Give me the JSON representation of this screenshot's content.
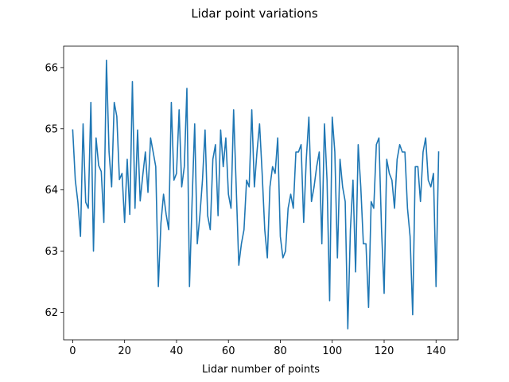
{
  "chart_data": {
    "type": "line",
    "title": "Lidar point variations",
    "xlabel": "Lidar number of points",
    "ylabel": "",
    "xlim": [
      -3.5,
      148.5
    ],
    "ylim": [
      61.55,
      66.35
    ],
    "xticks": [
      0,
      20,
      40,
      60,
      80,
      100,
      120,
      140
    ],
    "yticks": [
      62,
      63,
      64,
      65,
      66
    ],
    "grid": false,
    "series": [
      {
        "color": "#1f77b4",
        "x": [
          0,
          1,
          2,
          3,
          4,
          5,
          6,
          7,
          8,
          9,
          10,
          11,
          12,
          13,
          14,
          15,
          16,
          17,
          18,
          19,
          20,
          21,
          22,
          23,
          24,
          25,
          26,
          27,
          28,
          29,
          30,
          31,
          32,
          33,
          34,
          35,
          36,
          37,
          38,
          39,
          40,
          41,
          42,
          43,
          44,
          45,
          46,
          47,
          48,
          49,
          50,
          51,
          52,
          53,
          54,
          55,
          56,
          57,
          58,
          59,
          60,
          61,
          62,
          63,
          64,
          65,
          66,
          67,
          68,
          69,
          70,
          71,
          72,
          73,
          74,
          75,
          76,
          77,
          78,
          79,
          80,
          81,
          82,
          83,
          84,
          85,
          86,
          87,
          88,
          89,
          90,
          91,
          92,
          93,
          94,
          95,
          96,
          97,
          98,
          99,
          100,
          101,
          102,
          103,
          104,
          105,
          106,
          107,
          108,
          109,
          110,
          111,
          112,
          113,
          114,
          115,
          116,
          117,
          118,
          119,
          120,
          121,
          122,
          123,
          124,
          125,
          126,
          127,
          128,
          129,
          130,
          131,
          132,
          133,
          134,
          135,
          136,
          137,
          138,
          139,
          140,
          141
        ],
        "y": [
          64.98,
          64.16,
          63.8,
          63.24,
          65.08,
          63.8,
          63.7,
          65.43,
          63.0,
          64.85,
          64.4,
          64.3,
          63.47,
          66.12,
          64.62,
          64.05,
          65.43,
          65.2,
          64.17,
          64.27,
          63.47,
          64.5,
          63.6,
          65.77,
          63.7,
          64.98,
          63.82,
          64.24,
          64.62,
          63.96,
          64.85,
          64.62,
          64.38,
          62.42,
          63.46,
          63.93,
          63.6,
          63.35,
          65.43,
          64.16,
          64.27,
          65.31,
          64.05,
          64.38,
          65.66,
          62.42,
          63.81,
          65.08,
          63.12,
          63.58,
          64.16,
          64.98,
          63.58,
          63.35,
          64.5,
          64.74,
          63.58,
          64.98,
          64.38,
          64.85,
          63.93,
          63.7,
          65.31,
          64.05,
          62.77,
          63.12,
          63.35,
          64.16,
          64.05,
          65.31,
          64.05,
          64.62,
          65.08,
          64.27,
          63.35,
          62.89,
          64.05,
          64.38,
          64.27,
          64.85,
          63.24,
          62.89,
          63.0,
          63.7,
          63.93,
          63.7,
          64.62,
          64.62,
          64.74,
          63.47,
          64.5,
          65.19,
          63.81,
          64.05,
          64.38,
          64.62,
          63.12,
          65.08,
          64.16,
          62.19,
          65.19,
          64.62,
          62.89,
          64.5,
          64.05,
          63.81,
          61.73,
          63.35,
          64.16,
          62.66,
          64.74,
          64.05,
          63.12,
          63.12,
          62.08,
          63.81,
          63.7,
          64.74,
          64.85,
          63.35,
          62.31,
          64.5,
          64.27,
          64.16,
          63.7,
          64.5,
          64.74,
          64.62,
          64.62,
          63.7,
          63.24,
          61.96,
          64.38,
          64.38,
          63.81,
          64.62,
          64.85,
          64.16,
          64.05,
          64.27,
          62.42,
          64.62
        ]
      }
    ]
  }
}
